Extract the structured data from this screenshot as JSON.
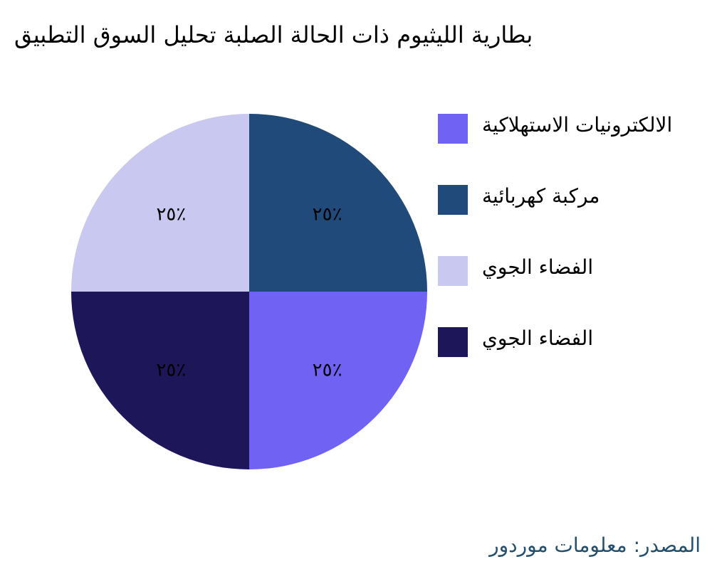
{
  "chart_data": {
    "type": "pie",
    "title": "بطارية الليثيوم ذات الحالة الصلبة تحليل السوق التطبيق",
    "slices": [
      {
        "name": "الالكترونيات الاستهلاكية",
        "value": 25,
        "label": "٢٥٪",
        "color": "#7063f3"
      },
      {
        "name": "مركبة كهربائية",
        "value": 25,
        "label": "٢٥٪",
        "color": "#1f4a7a"
      },
      {
        "name": "الفضاء الجوي",
        "value": 25,
        "label": "٢٥٪",
        "color": "#c8c8f0"
      },
      {
        "name": "الفضاء الجوي",
        "value": 25,
        "label": "٢٥٪",
        "color": "#1d1659"
      }
    ],
    "legend_position": "right",
    "source": "المصدر: معلومات موردور"
  }
}
